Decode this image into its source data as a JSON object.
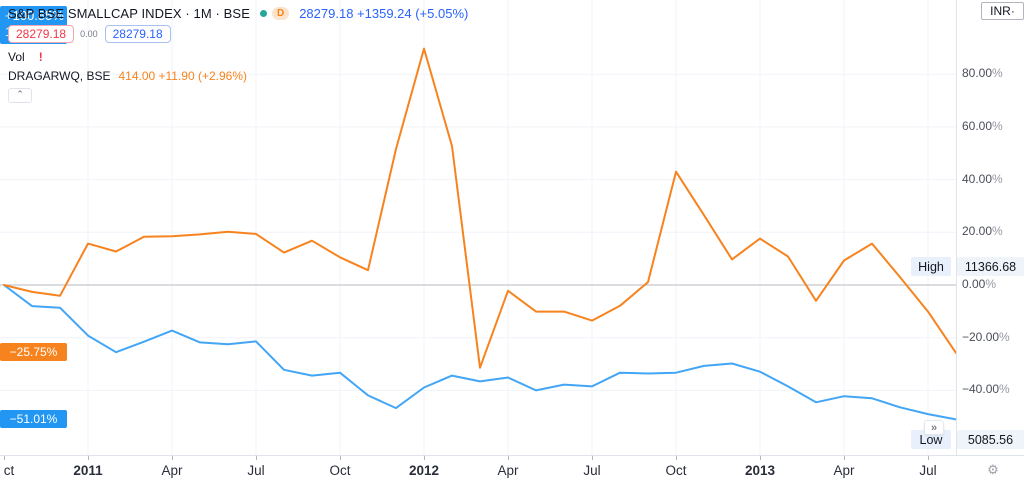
{
  "header": {
    "title_full": "S&P BSE SMALLCAP INDEX · 1M · BSE",
    "d_badge": "D",
    "quote_text": "28279.18 +1359.24 (+5.05%)",
    "sell_price": "28279.18",
    "spread": "0.00",
    "buy_price": "28279.18",
    "vol_label": "Vol",
    "vol_warning": "!",
    "compare_title": "DRAGARWQ, BSE",
    "compare_quote": "414.00 +11.90 (+2.96%)",
    "collapse_icon": "ˆ"
  },
  "price_scale": {
    "currency_label": "INR·",
    "main_badge_percent": "+100.85%",
    "main_badge_countdown": "15d 3h",
    "tick_labels": [
      "80.00%",
      "60.00%",
      "40.00%",
      "20.00%",
      "0.00%",
      "−20.00%",
      "−40.00%"
    ],
    "high_label": "High",
    "high_value": "11366.68",
    "low_label": "Low",
    "low_value": "5085.56",
    "compare_badge": "−25.75%",
    "last_value_badge": "−51.01%"
  },
  "time_axis": {
    "labels": [
      "ct",
      "2011",
      "Apr",
      "Jul",
      "Oct",
      "2012",
      "Apr",
      "Jul",
      "Oct",
      "2013",
      "Apr",
      "Jul"
    ],
    "bold_flags": [
      false,
      true,
      false,
      false,
      false,
      true,
      false,
      false,
      false,
      true,
      false,
      false
    ],
    "goto_realtime_icon": "»",
    "settings_icon": "⚙"
  },
  "colors": {
    "main_line": "#42A5F5",
    "compare_line": "#F7831E",
    "badge_blue": "#2196F3",
    "badge_orange": "#F7831E",
    "grid": "#F0F3FA",
    "zero_line": "#B7BAC2",
    "tick_mark": "#B2B5BE"
  },
  "chart_data": {
    "type": "line",
    "ylabel": "percent change since first visible bar",
    "ylim": [
      -55,
      105
    ],
    "grid_percents": [
      80,
      60,
      40,
      20,
      0,
      -20,
      -40
    ],
    "categories": [
      "2010-10",
      "2010-11",
      "2010-12",
      "2011-01",
      "2011-02",
      "2011-03",
      "2011-04",
      "2011-05",
      "2011-06",
      "2011-07",
      "2011-08",
      "2011-09",
      "2011-10",
      "2011-11",
      "2011-12",
      "2012-01",
      "2012-02",
      "2012-03",
      "2012-04",
      "2012-05",
      "2012-06",
      "2012-07",
      "2012-08",
      "2012-09",
      "2012-10",
      "2012-11",
      "2012-12",
      "2013-01",
      "2013-02",
      "2013-03",
      "2013-04",
      "2013-05",
      "2013-06",
      "2013-07",
      "2013-08"
    ],
    "series": [
      {
        "name": "S&P BSE SMALLCAP INDEX",
        "color": "#42A5F5",
        "values": [
          0,
          -8,
          -8.6,
          -19.2,
          -25.5,
          -21.5,
          -17.3,
          -21.8,
          -22.5,
          -21.4,
          -32.2,
          -34.4,
          -33.3,
          -41.9,
          -46.7,
          -38.9,
          -34.4,
          -36.6,
          -35.1,
          -40,
          -37.8,
          -38.5,
          -33.3,
          -33.6,
          -33.3,
          -30.7,
          -29.8,
          -32.9,
          -38.5,
          -44.5,
          -42.2,
          -43,
          -46.4,
          -49,
          -51.01
        ]
      },
      {
        "name": "DRAGARWQ",
        "color": "#F7831E",
        "values": [
          0,
          -2.6,
          -4.1,
          15.7,
          12.7,
          18.3,
          18.5,
          19.2,
          20.2,
          19.4,
          12.3,
          16.8,
          10.5,
          5.6,
          51.6,
          89.7,
          52.7,
          -31.4,
          -2.2,
          -10.1,
          -10.1,
          -13.5,
          -7.9,
          1.1,
          43,
          26.5,
          9.7,
          17.6,
          10.8,
          -6,
          9.3,
          15.7,
          3,
          -10.1,
          -25.75
        ]
      }
    ],
    "legend_position": "top-left",
    "grid": true
  }
}
